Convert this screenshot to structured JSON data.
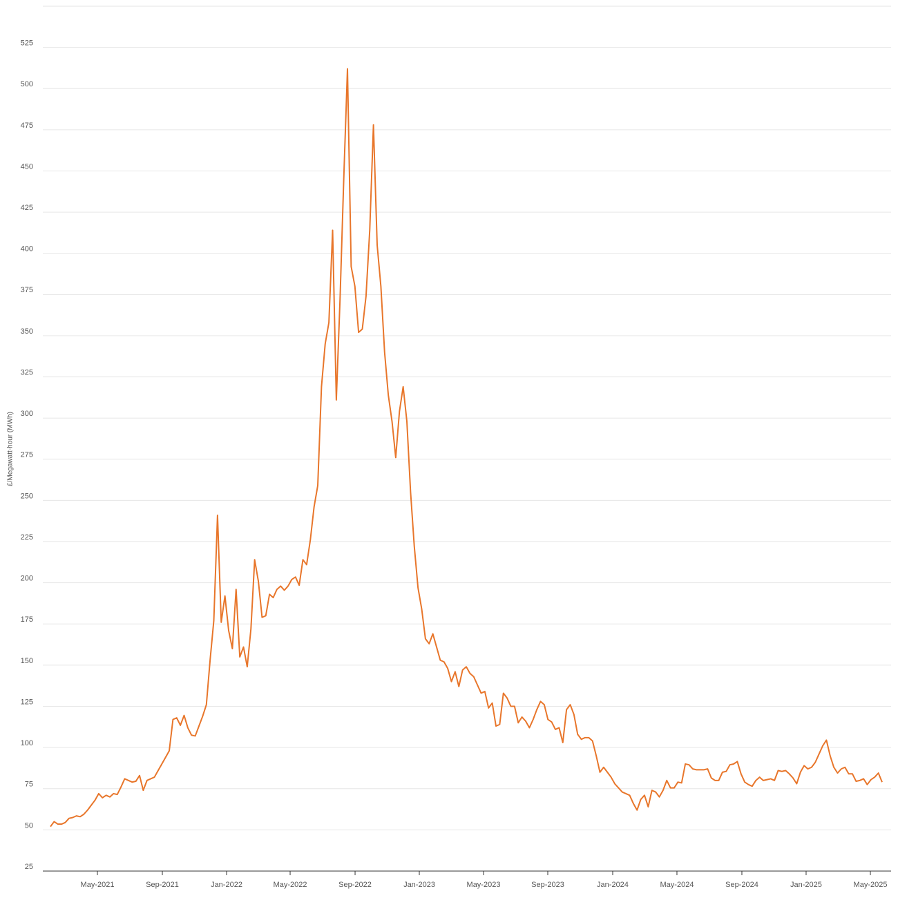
{
  "chart_data": {
    "type": "line",
    "y_label": "£/Megawatt-hour (MWh)",
    "color": "#e8762b",
    "grid": true,
    "ylim": [
      25,
      550
    ],
    "yticks": [
      25,
      50,
      75,
      100,
      125,
      150,
      175,
      200,
      225,
      250,
      275,
      300,
      325,
      350,
      375,
      400,
      425,
      450,
      475,
      500,
      525
    ],
    "xlim": [
      -2.05,
      226.42
    ],
    "xticks": [
      {
        "value": 12.65,
        "label": "May-2021"
      },
      {
        "value": 30.14,
        "label": "Sep-2021"
      },
      {
        "value": 47.44,
        "label": "Jan-2022"
      },
      {
        "value": 64.56,
        "label": "May-2022"
      },
      {
        "value": 82.05,
        "label": "Sep-2022"
      },
      {
        "value": 99.35,
        "label": "Jan-2023"
      },
      {
        "value": 116.65,
        "label": "May-2023"
      },
      {
        "value": 133.95,
        "label": "Sep-2023"
      },
      {
        "value": 151.44,
        "label": "Jan-2024"
      },
      {
        "value": 168.74,
        "label": "May-2024"
      },
      {
        "value": 186.23,
        "label": "Sep-2024"
      },
      {
        "value": 203.53,
        "label": "Jan-2025"
      },
      {
        "value": 220.84,
        "label": "May-2025"
      }
    ],
    "x": [
      0,
      1,
      2,
      3,
      4,
      5,
      6,
      7,
      8,
      9,
      10,
      11,
      12,
      13,
      14,
      15,
      16,
      17,
      18,
      19,
      20,
      21,
      22,
      23,
      24,
      25,
      26,
      27,
      28,
      29,
      30,
      31,
      32,
      33,
      34,
      35,
      36,
      37,
      38,
      39,
      40,
      41,
      42,
      43,
      44,
      45,
      46,
      47,
      48,
      49,
      50,
      51,
      52,
      53,
      54,
      55,
      56,
      57,
      58,
      59,
      60,
      61,
      62,
      63,
      64,
      65,
      66,
      67,
      68,
      69,
      70,
      71,
      72,
      73,
      74,
      75,
      76,
      77,
      78,
      79,
      80,
      81,
      82,
      83,
      84,
      85,
      86,
      87,
      88,
      89,
      90,
      91,
      92,
      93,
      94,
      95,
      96,
      97,
      98,
      99,
      100,
      101,
      102,
      103,
      104,
      105,
      106,
      107,
      108,
      109,
      110,
      111,
      112,
      113,
      114,
      115,
      116,
      117,
      118,
      119,
      120,
      121,
      122,
      123,
      124,
      125,
      126,
      127,
      128,
      129,
      130,
      131,
      132,
      133,
      134,
      135,
      136,
      137,
      138,
      139,
      140,
      141,
      142,
      143,
      144,
      145,
      146,
      147,
      148,
      149,
      150,
      151,
      152,
      153,
      154,
      155,
      156,
      157,
      158,
      159,
      160,
      161,
      162,
      163,
      164,
      165,
      166,
      167,
      168,
      169,
      170,
      171,
      172,
      173,
      174,
      175,
      176,
      177,
      178,
      179,
      180,
      181,
      182,
      183,
      184,
      185,
      186,
      187,
      188,
      189,
      190,
      191,
      192,
      193,
      194,
      195,
      196,
      197,
      198,
      199,
      200,
      201,
      202,
      203,
      204,
      205,
      206,
      207,
      208,
      209,
      210,
      211,
      212,
      213,
      214,
      215,
      216,
      217,
      218,
      219,
      220,
      221,
      222,
      223,
      224
    ],
    "values": [
      52,
      55,
      53.5,
      53.5,
      54.5,
      57,
      57.5,
      58.5,
      58,
      59.5,
      62,
      65,
      68,
      72,
      69.5,
      71,
      70,
      72,
      71.5,
      76,
      81,
      80,
      79,
      79.5,
      83,
      74,
      80,
      81,
      82,
      86,
      90,
      94,
      98,
      117,
      118,
      113.5,
      119.5,
      112,
      107.5,
      107,
      113,
      119,
      126,
      153,
      177,
      241,
      176,
      192,
      171,
      160,
      196,
      155,
      161,
      149,
      172,
      214,
      201,
      179,
      180,
      193,
      191,
      196,
      198,
      195.5,
      198,
      202,
      203.5,
      198.5,
      214,
      211,
      226,
      246,
      259,
      319,
      345,
      358,
      414,
      311,
      372,
      445,
      512,
      392,
      380,
      352,
      354,
      374,
      414,
      478,
      405,
      380,
      340,
      314,
      298,
      276,
      304,
      319,
      298,
      255,
      222,
      197,
      184,
      166,
      163,
      169,
      161,
      153,
      152,
      148,
      140,
      146,
      137,
      147,
      149,
      145,
      143,
      138,
      133,
      134,
      124,
      127,
      113,
      114,
      133,
      130,
      125,
      125,
      115,
      118.5,
      116,
      112,
      117,
      123,
      128,
      126,
      117,
      115.5,
      111,
      112,
      103,
      123,
      126,
      120,
      108,
      105,
      106,
      106,
      104,
      95,
      85,
      88,
      85,
      82,
      78,
      75.5,
      73,
      72,
      71,
      66,
      62,
      68.5,
      71,
      64,
      74,
      73,
      70,
      74,
      80,
      75.5,
      75.5,
      79,
      78.5,
      90,
      89.5,
      87,
      86.5,
      86.5,
      86.5,
      87,
      81.5,
      80,
      80,
      85,
      85.5,
      89.5,
      90,
      91.5,
      84,
      79,
      77.5,
      76.5,
      80,
      82,
      80,
      80.5,
      81,
      80,
      86,
      85.5,
      86,
      84,
      81.5,
      78,
      85,
      89,
      87,
      88,
      91,
      96,
      101,
      104.5,
      95,
      88,
      84.5,
      87,
      88,
      84,
      84,
      79.5,
      80,
      81,
      77.5,
      80.5,
      82,
      84.5,
      79
    ]
  }
}
